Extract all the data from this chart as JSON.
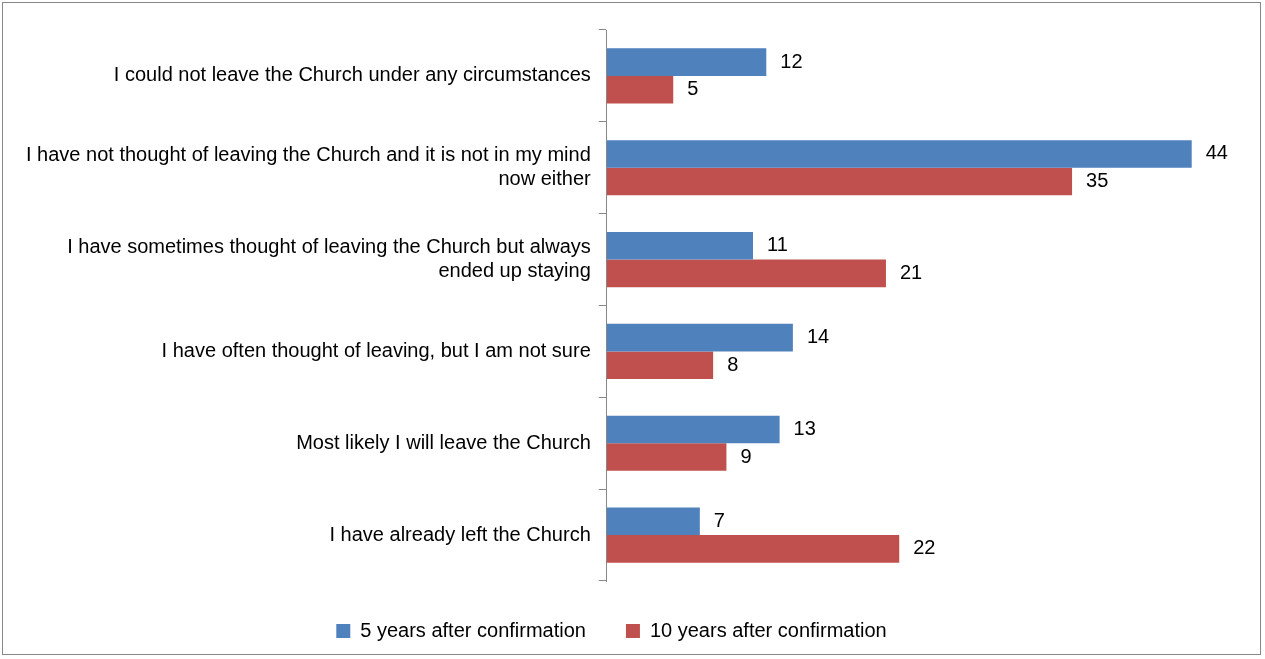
{
  "chart_data": {
    "type": "bar",
    "orientation": "horizontal",
    "categories": [
      "I could not leave the Church under any circumstances",
      "I have not thought of leaving the Church and it is not in my mind now either",
      "I have sometimes thought of leaving the Church but always ended up staying",
      "I have often thought of leaving, but I am not sure",
      "Most likely I will leave the Church",
      "I have already left the Church"
    ],
    "series": [
      {
        "name": "5 years after confirmation",
        "color": "#4f81bd",
        "values": [
          12,
          44,
          11,
          14,
          13,
          7
        ]
      },
      {
        "name": "10 years after confirmation",
        "color": "#c0504d",
        "values": [
          5,
          35,
          21,
          8,
          9,
          22
        ]
      }
    ],
    "data_labels": true,
    "legend": "bottom"
  }
}
